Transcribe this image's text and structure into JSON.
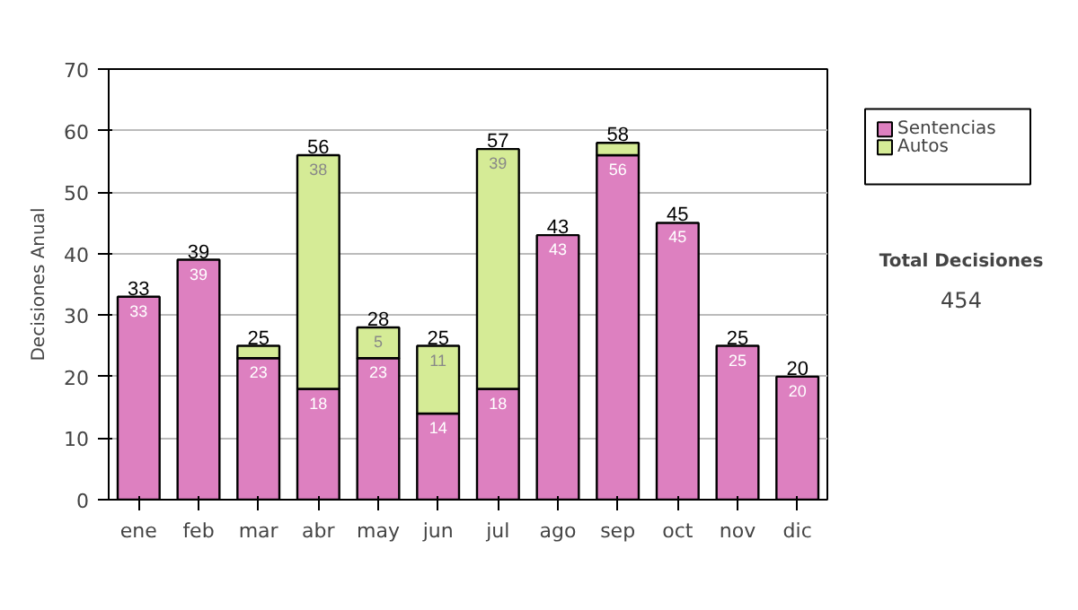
{
  "chart_data": {
    "type": "bar",
    "stacked": true,
    "ylabel": "Decisiones Anual",
    "categories": [
      "ene",
      "feb",
      "mar",
      "abr",
      "may",
      "jun",
      "jul",
      "ago",
      "sep",
      "oct",
      "nov",
      "dic"
    ],
    "series": [
      {
        "name": "Sentencias",
        "color": "#dd80c0",
        "values": [
          33,
          39,
          23,
          18,
          23,
          14,
          18,
          43,
          56,
          45,
          25,
          20
        ],
        "value_labels": [
          "33",
          "39",
          "23",
          "18",
          "23",
          "14",
          "18",
          "43",
          "56",
          "45",
          "25",
          "20"
        ]
      },
      {
        "name": "Autos",
        "color": "#d5eb96",
        "values": [
          null,
          null,
          2,
          38,
          5,
          11,
          39,
          null,
          2,
          null,
          null,
          null
        ],
        "value_labels": [
          null,
          null,
          null,
          "38",
          "5",
          "11",
          "39",
          null,
          null,
          null,
          null,
          null
        ]
      }
    ],
    "totals": [
      "33",
      "39",
      "25",
      "56",
      "28",
      "25",
      "57",
      "43",
      "58",
      "45",
      "25",
      "20"
    ],
    "ylim": [
      0,
      70
    ],
    "yticks": [
      0,
      10,
      20,
      30,
      40,
      50,
      60,
      70
    ],
    "grid": "y",
    "legend": "right",
    "annotations": [
      "Total Decisiones",
      "454"
    ]
  }
}
